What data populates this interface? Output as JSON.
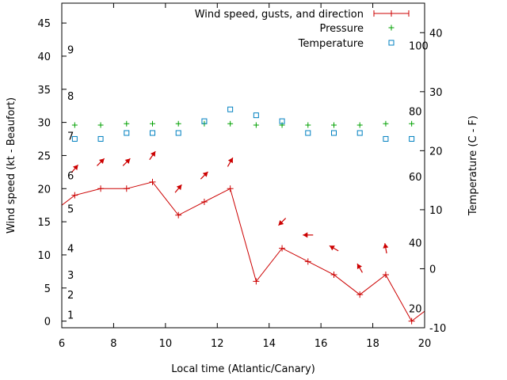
{
  "chart_data": {
    "type": "line",
    "xlabel": "Local time (Atlantic/Canary)",
    "ylabel": "Wind speed (kt - Beaufort)",
    "y2label": "Temperature (C - F)",
    "xlim": [
      6,
      20
    ],
    "ylim": [
      -1,
      48
    ],
    "y2lim": [
      -10,
      45
    ],
    "x_ticks": [
      6,
      8,
      10,
      12,
      14,
      16,
      18,
      20
    ],
    "y_ticks": [
      0,
      5,
      10,
      15,
      20,
      25,
      30,
      35,
      40,
      45
    ],
    "y2_ticks": [
      -10,
      0,
      10,
      20,
      30,
      40
    ],
    "grid": false,
    "legend_position": "top-right",
    "series": [
      {
        "name": "Wind speed, gusts, and direction",
        "axis": "left",
        "color": "#cc0000",
        "x": [
          6.5,
          7.5,
          8.5,
          9.5,
          10.5,
          11.5,
          12.5,
          13.5,
          14.5,
          15.5,
          16.5,
          17.5,
          18.5,
          19.5
        ],
        "values": [
          19,
          20,
          20,
          21,
          16,
          18,
          20,
          6,
          11,
          9,
          7,
          4,
          7,
          0
        ]
      },
      {
        "name": "Pressure",
        "axis": "left",
        "color": "#00a000",
        "x": [
          6.5,
          7.5,
          8.5,
          9.5,
          10.5,
          11.5,
          12.5,
          13.5,
          14.5,
          15.5,
          16.5,
          17.5,
          18.5,
          19.5
        ],
        "values": [
          29.6,
          29.6,
          29.8,
          29.8,
          29.8,
          29.8,
          29.8,
          29.6,
          29.6,
          29.6,
          29.6,
          29.6,
          29.8,
          29.8
        ]
      },
      {
        "name": "Temperature",
        "axis": "right",
        "color": "#0080c0",
        "x": [
          6.5,
          7.5,
          8.5,
          9.5,
          10.5,
          11.5,
          12.5,
          13.5,
          14.5,
          15.5,
          16.5,
          17.5,
          18.5,
          19.5
        ],
        "values": [
          22,
          22,
          23,
          23,
          23,
          25,
          27,
          26,
          25,
          23,
          23,
          23,
          22,
          22
        ]
      }
    ],
    "wind_direction_arrows": {
      "color": "#cc0000",
      "x": [
        6.5,
        7.5,
        8.5,
        9.5,
        10.5,
        11.5,
        12.5,
        14.5,
        15.5,
        16.5,
        17.5,
        18.5
      ],
      "y": [
        23,
        24,
        24,
        25,
        20,
        22,
        24,
        15,
        13,
        11,
        8,
        11
      ],
      "direction_deg": [
        220,
        225,
        225,
        215,
        220,
        225,
        210,
        45,
        90,
        120,
        150,
        170
      ]
    },
    "beaufort_labels": {
      "labels": [
        "1",
        "2",
        "3",
        "4",
        "5",
        "6",
        "7",
        "8",
        "9"
      ],
      "y": [
        1,
        4,
        7,
        11,
        17,
        22,
        28,
        34,
        41
      ]
    },
    "fahrenheit_labels": {
      "labels": [
        "20",
        "40",
        "60",
        "80",
        "100"
      ],
      "y": [
        -6.7,
        4.4,
        15.6,
        26.7,
        37.8
      ]
    }
  }
}
